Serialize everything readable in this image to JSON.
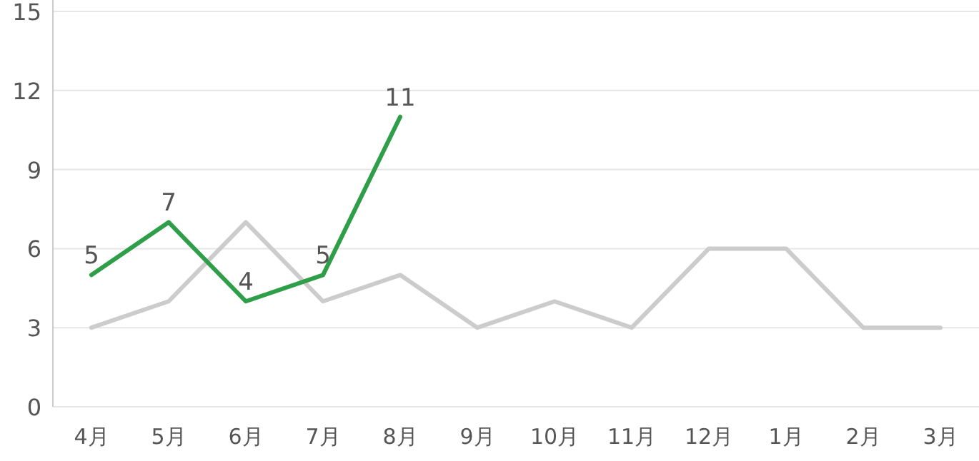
{
  "chart_data": {
    "type": "line",
    "categories": [
      "4月",
      "5月",
      "6月",
      "7月",
      "8月",
      "9月",
      "10月",
      "11月",
      "12月",
      "1月",
      "2月",
      "3月"
    ],
    "series": [
      {
        "color": "#cccccc",
        "values": [
          3,
          4,
          7,
          4,
          5,
          3,
          4,
          3,
          6,
          6,
          3,
          3
        ]
      },
      {
        "color": "#2e9e48",
        "values": [
          5,
          7,
          4,
          5,
          11,
          null,
          null,
          null,
          null,
          null,
          null,
          null
        ],
        "value_labels": [
          "5",
          "7",
          "4",
          "5",
          "11",
          null,
          null,
          null,
          null,
          null,
          null,
          null
        ]
      }
    ],
    "ylim": [
      0,
      15
    ],
    "yticks": [
      0,
      3,
      6,
      9,
      12,
      15
    ],
    "grid": "y"
  }
}
